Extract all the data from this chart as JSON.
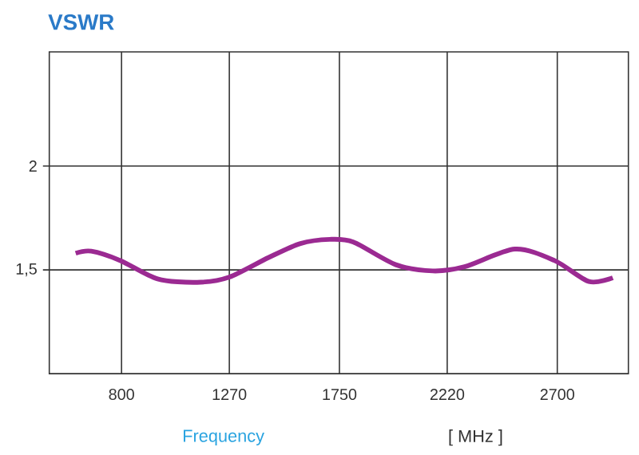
{
  "chart_data": {
    "type": "line",
    "title": "VSWR",
    "xlabel": "Frequency",
    "annotations": [
      "[ MHz ]"
    ],
    "x": [
      600,
      668,
      795,
      957,
      1130,
      1269,
      1442,
      1580,
      1707,
      1811,
      1996,
      2157,
      2296,
      2515,
      2688,
      2838,
      2942
    ],
    "series": [
      {
        "color": "#9b2a92",
        "values": [
          1.58,
          1.59,
          1.545,
          1.457,
          1.44,
          1.465,
          1.56,
          1.627,
          1.647,
          1.634,
          1.525,
          1.495,
          1.515,
          1.6,
          1.545,
          1.444,
          1.462
        ]
      }
    ],
    "xlim": [
      485,
      3010
    ],
    "ylim": [
      1,
      2.55
    ],
    "xticks": [
      800,
      1270,
      1750,
      2220,
      2700
    ],
    "yticks": [
      {
        "value": 1.5,
        "label": "1,5"
      },
      2
    ],
    "grid": true,
    "marker": "none",
    "line_style": "solid"
  }
}
